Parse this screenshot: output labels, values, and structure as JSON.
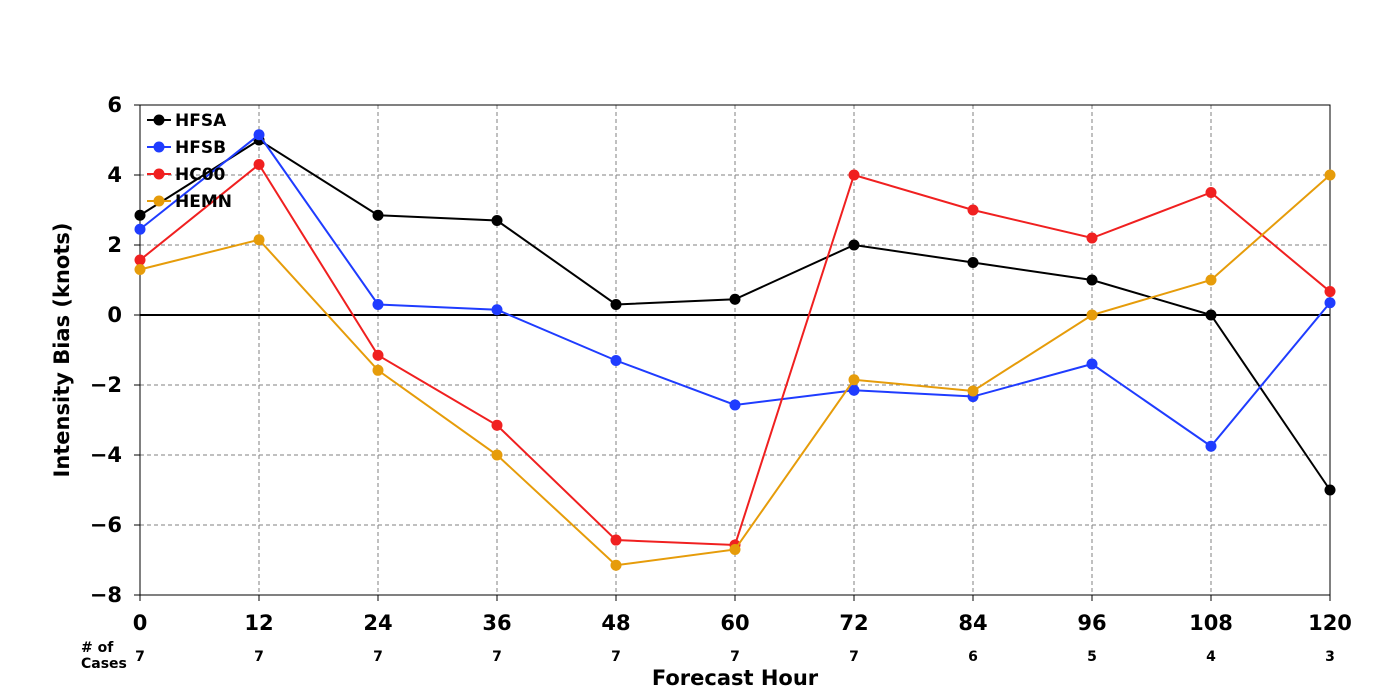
{
  "chart_data": {
    "type": "line",
    "title": "",
    "xlabel": "Forecast Hour",
    "ylabel": "Intensity Bias (knots)",
    "xlim": [
      0,
      120
    ],
    "ylim": [
      -8,
      6
    ],
    "x_ticks": [
      0,
      12,
      24,
      36,
      48,
      60,
      72,
      84,
      96,
      108,
      120
    ],
    "y_ticks": [
      -8,
      -6,
      -4,
      -2,
      0,
      2,
      4,
      6
    ],
    "y_tick_labels": [
      "−8",
      "−6",
      "−4",
      "−2",
      "0",
      "2",
      "4",
      "6"
    ],
    "grid": true,
    "legend_position": "top-left",
    "cases_label_line1": "# of",
    "cases_label_line2": "Cases",
    "cases": [
      7,
      7,
      7,
      7,
      7,
      7,
      7,
      6,
      5,
      4,
      3
    ],
    "x": [
      0,
      12,
      24,
      36,
      48,
      60,
      72,
      84,
      96,
      108,
      120
    ],
    "series": [
      {
        "name": "HFSA",
        "color": "#000000",
        "values": [
          2.85,
          5.0,
          2.85,
          2.7,
          0.3,
          0.45,
          2.0,
          1.5,
          1.0,
          0.0,
          -5.0
        ]
      },
      {
        "name": "HFSB",
        "color": "#1f3cff",
        "values": [
          2.45,
          5.15,
          0.3,
          0.15,
          -1.3,
          -2.57,
          -2.15,
          -2.33,
          -1.4,
          -3.75,
          0.35
        ]
      },
      {
        "name": "HC00",
        "color": "#f02020",
        "values": [
          1.57,
          4.3,
          -1.15,
          -3.15,
          -6.43,
          -6.57,
          4.0,
          3.0,
          2.2,
          3.5,
          0.67
        ]
      },
      {
        "name": "HEMN",
        "color": "#e69c0a",
        "values": [
          1.3,
          2.15,
          -1.58,
          -4.0,
          -7.15,
          -6.7,
          -1.85,
          -2.17,
          0.0,
          1.0,
          4.0
        ]
      }
    ]
  }
}
